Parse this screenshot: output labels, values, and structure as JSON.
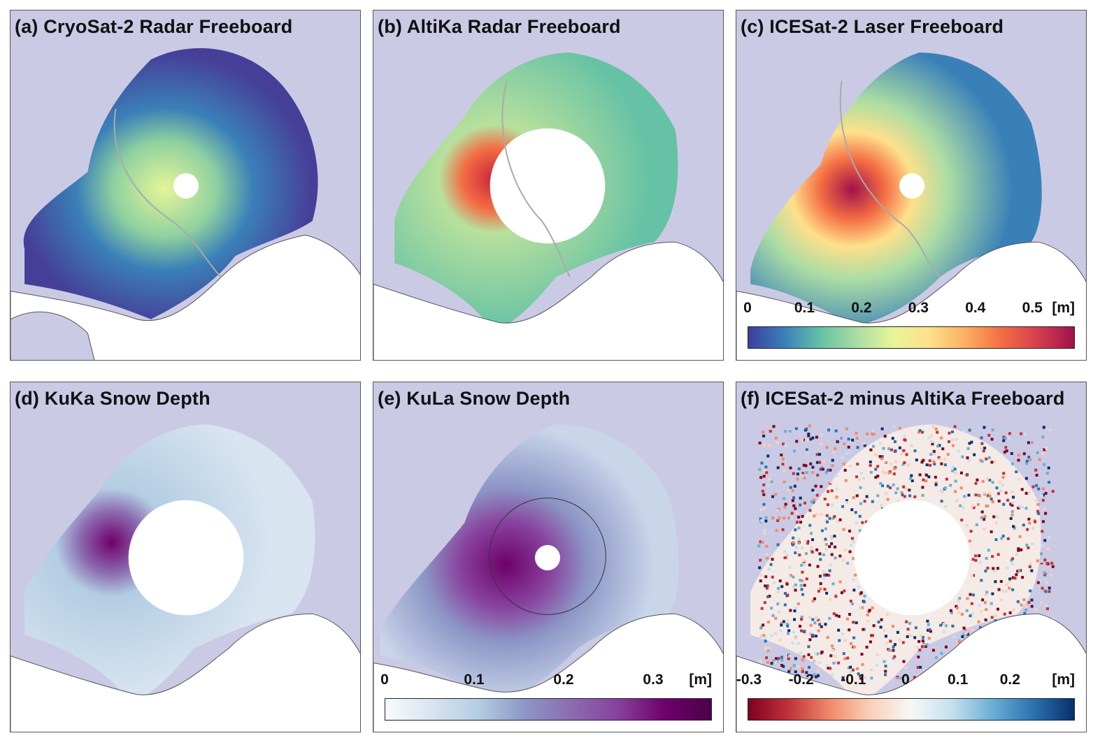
{
  "panels": {
    "a": {
      "title": "(a) CryoSat-2 Radar Freeboard"
    },
    "b": {
      "title": "(b) AltiKa Radar Freeboard"
    },
    "c": {
      "title": "(c) ICESat-2 Laser Freeboard"
    },
    "d": {
      "title": "(d) KuKa Snow Depth"
    },
    "e": {
      "title": "(e) KuLa Snow Depth"
    },
    "f": {
      "title": "(f) ICESat-2 minus AltiKa Freeboard"
    }
  },
  "colorbars": {
    "freeboard": {
      "ticks": [
        "0",
        "0.1",
        "0.2",
        "0.3",
        "0.4",
        "0.5"
      ],
      "tick_values": [
        0,
        0.1,
        0.2,
        0.3,
        0.4,
        0.5
      ],
      "range": [
        0,
        0.55
      ],
      "unit": "[m]",
      "colormap": "spectral-reversed",
      "colors": [
        "#3b3f9e",
        "#3a80b8",
        "#66c2a5",
        "#abdda4",
        "#e6f598",
        "#fee08b",
        "#fdae61",
        "#f46d43",
        "#d53e4f",
        "#a0124a"
      ]
    },
    "snow": {
      "ticks": [
        "0",
        "0.1",
        "0.2",
        "0.3"
      ],
      "tick_values": [
        0,
        0.1,
        0.2,
        0.3
      ],
      "range": [
        0,
        0.35
      ],
      "unit": "[m]",
      "colormap": "blue-purple",
      "colors": [
        "#f7fcfd",
        "#d8e4f0",
        "#b3cde3",
        "#8c96c6",
        "#8c6bb1",
        "#88419d",
        "#6e016b",
        "#4d004b"
      ]
    },
    "difference": {
      "ticks": [
        "-0.3",
        "-0.2",
        "-0.1",
        "0",
        "0.1",
        "0.2"
      ],
      "tick_values": [
        -0.3,
        -0.2,
        -0.1,
        0,
        0.1,
        0.2
      ],
      "range": [
        -0.3,
        0.3
      ],
      "unit": "[m]",
      "colormap": "red-blue diverging",
      "colors": [
        "#800020",
        "#c0333a",
        "#f08a6a",
        "#fbd0b9",
        "#f7f7f7",
        "#c6e0ee",
        "#6baed6",
        "#2a72b0",
        "#08306b"
      ]
    }
  },
  "map_colors": {
    "ocean": "#cbcae5",
    "land": "#ffffff",
    "coastline": "#555555",
    "boundary": "#aaaaaa"
  }
}
